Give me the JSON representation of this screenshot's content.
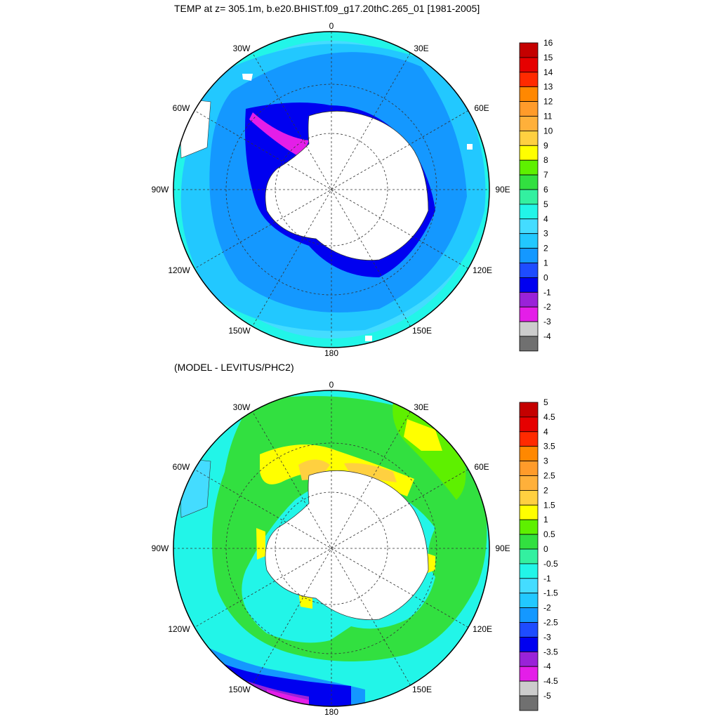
{
  "panels": [
    {
      "title": "TEMP at z= 305.1m, b.e20.BHIST.f09_g17.20thC.265_01 [1981-2005]",
      "lon_labels": [
        "0",
        "30E",
        "60E",
        "90E",
        "120E",
        "150E",
        "180",
        "150W",
        "120W",
        "90W",
        "60W",
        "30W"
      ],
      "colorbar": {
        "labels": [
          "16",
          "15",
          "14",
          "13",
          "12",
          "11",
          "10",
          "9",
          "8",
          "7",
          "6",
          "5",
          "4",
          "3",
          "2",
          "1",
          "0",
          "-1",
          "-2",
          "-3",
          "-4"
        ],
        "colors": [
          "#c40000",
          "#e60000",
          "#ff2a00",
          "#ff8800",
          "#ff9b2a",
          "#ffb03a",
          "#ffd040",
          "#ffff00",
          "#5ef000",
          "#32e040",
          "#33f0a0",
          "#22f5e8",
          "#44dcff",
          "#22c8ff",
          "#1498ff",
          "#1e4cff",
          "#0000f0",
          "#9a22d8",
          "#e41ee8",
          "#cccccc",
          "#707070"
        ]
      }
    },
    {
      "title": "(MODEL - LEVITUS/PHC2)",
      "lon_labels": [
        "0",
        "30E",
        "60E",
        "90E",
        "120E",
        "150E",
        "180",
        "150W",
        "120W",
        "90W",
        "60W",
        "30W"
      ],
      "colorbar": {
        "labels": [
          "5",
          "4.5",
          "4",
          "3.5",
          "3",
          "2.5",
          "2",
          "1.5",
          "1",
          "0.5",
          "0",
          "-0.5",
          "-1",
          "-1.5",
          "-2",
          "-2.5",
          "-3",
          "-3.5",
          "-4",
          "-4.5",
          "-5"
        ],
        "colors": [
          "#c40000",
          "#e60000",
          "#ff2a00",
          "#ff8800",
          "#ff9b2a",
          "#ffb03a",
          "#ffd040",
          "#ffff00",
          "#5ef000",
          "#32e040",
          "#33f0a0",
          "#22f5e8",
          "#44dcff",
          "#22c8ff",
          "#1498ff",
          "#1e4cff",
          "#0000f0",
          "#9a22d8",
          "#e41ee8",
          "#cccccc",
          "#707070"
        ]
      }
    }
  ]
}
